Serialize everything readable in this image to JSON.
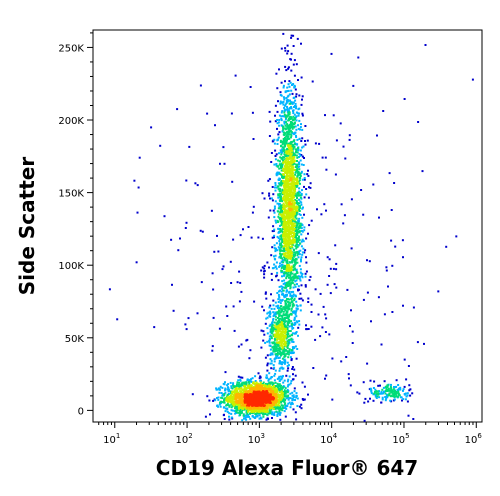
{
  "chart_data": {
    "type": "scatter",
    "style": "flow-cytometry density dot plot",
    "xlabel": "CD19 Alexa Fluor® 647",
    "ylabel": "Side Scatter",
    "x_scale": "biexponential-log",
    "y_scale": "linear",
    "xlim": [
      5,
      1200000
    ],
    "ylim": [
      -8000,
      262000
    ],
    "x_ticks": [
      {
        "value": 10,
        "base": "10",
        "exp": "1"
      },
      {
        "value": 100,
        "base": "10",
        "exp": "2"
      },
      {
        "value": 1000,
        "base": "10",
        "exp": "3"
      },
      {
        "value": 10000,
        "base": "10",
        "exp": "4"
      },
      {
        "value": 100000,
        "base": "10",
        "exp": "5"
      },
      {
        "value": 1000000,
        "base": "10",
        "exp": "6"
      }
    ],
    "y_ticks": [
      {
        "value": 0,
        "label": "0"
      },
      {
        "value": 50000,
        "label": "50K"
      },
      {
        "value": 100000,
        "label": "100K"
      },
      {
        "value": 150000,
        "label": "150K"
      },
      {
        "value": 200000,
        "label": "200K"
      },
      {
        "value": 250000,
        "label": "250K"
      }
    ],
    "grid": false,
    "legend": "none",
    "colormap": [
      "#0000cc",
      "#00b4ff",
      "#00dc78",
      "#c8f000",
      "#ffb400",
      "#ff2800"
    ],
    "populations": [
      {
        "x_center": 900,
        "y_center": 9000,
        "x_log_sd": 0.22,
        "y_sd": 6000,
        "count": 1900
      },
      {
        "x_center": 2500,
        "y_center": 140000,
        "x_log_sd": 0.09,
        "y_sd": 40000,
        "count": 2300
      },
      {
        "x_center": 1900,
        "y_center": 52000,
        "x_log_sd": 0.09,
        "y_sd": 11000,
        "count": 500
      },
      {
        "x_center": 60000,
        "y_center": 13000,
        "x_log_sd": 0.14,
        "y_sd": 3500,
        "count": 160
      },
      {
        "x_center": 3000,
        "y_center": 100000,
        "x_log_sd": 0.9,
        "y_sd": 70000,
        "count": 300
      }
    ]
  }
}
